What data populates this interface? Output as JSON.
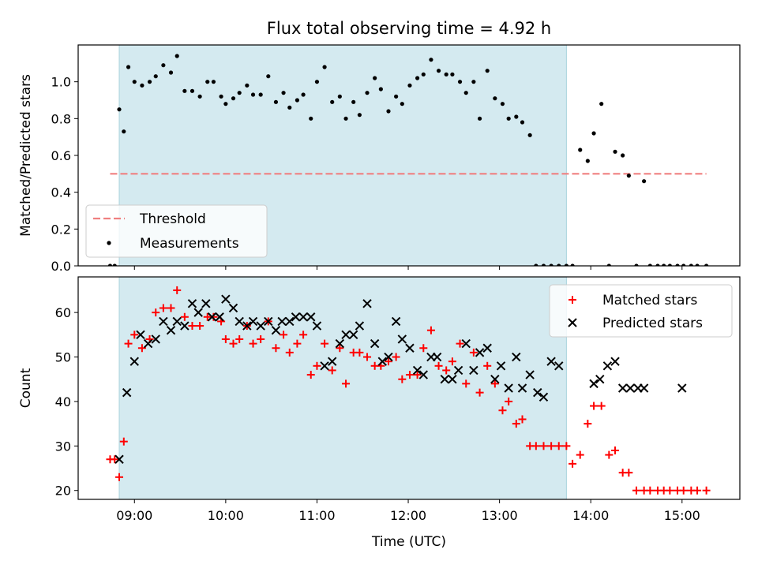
{
  "title": "Flux total observing time = 4.92 h",
  "xlabel": "Time (UTC)",
  "colors": {
    "shade": "#d4eaf0",
    "shade_edge": "#a9d3dc",
    "threshold": "#f08080",
    "matched": "#ff0000",
    "predicted": "#000000",
    "measurements": "#000000"
  },
  "chart_data": [
    {
      "type": "scatter",
      "ylabel": "Matched/Predicted stars",
      "xlim": [
        "08:23",
        "15:38"
      ],
      "ylim": [
        0,
        1.2
      ],
      "xticks": [
        "09:00",
        "10:00",
        "11:00",
        "12:00",
        "13:00",
        "14:00",
        "15:00"
      ],
      "yticks": [
        "0.0",
        "0.2",
        "0.4",
        "0.6",
        "0.8",
        "1.0"
      ],
      "shaded_span": [
        "08:50",
        "13:44"
      ],
      "legend_position": "lower-left",
      "threshold": {
        "name": "Threshold",
        "y": 0.5,
        "x_range": [
          "08:44",
          "15:16"
        ]
      },
      "series": [
        {
          "name": "Measurements",
          "x": [
            "08:44",
            "08:47",
            "08:50",
            "08:53",
            "08:56",
            "09:00",
            "09:05",
            "09:10",
            "09:14",
            "09:19",
            "09:24",
            "09:28",
            "09:33",
            "09:38",
            "09:43",
            "09:48",
            "09:52",
            "09:57",
            "10:00",
            "10:05",
            "10:09",
            "10:14",
            "10:18",
            "10:23",
            "10:28",
            "10:33",
            "10:38",
            "10:42",
            "10:47",
            "10:51",
            "10:56",
            "11:00",
            "11:05",
            "11:10",
            "11:15",
            "11:19",
            "11:24",
            "11:28",
            "11:33",
            "11:38",
            "11:42",
            "11:47",
            "11:52",
            "11:56",
            "12:01",
            "12:06",
            "12:10",
            "12:15",
            "12:20",
            "12:25",
            "12:29",
            "12:34",
            "12:38",
            "12:43",
            "12:47",
            "12:52",
            "12:57",
            "13:02",
            "13:06",
            "13:11",
            "13:15",
            "13:20",
            "13:24",
            "13:29",
            "13:34",
            "13:39",
            "13:44",
            "13:48",
            "13:53",
            "13:58",
            "14:02",
            "14:07",
            "14:12",
            "14:16",
            "14:21",
            "14:25",
            "14:30",
            "14:35",
            "14:39",
            "14:44",
            "14:48",
            "14:52",
            "14:57",
            "15:01",
            "15:06",
            "15:10",
            "15:16"
          ],
          "y": [
            0.0,
            0.0,
            0.85,
            0.73,
            1.08,
            1.0,
            0.98,
            1.0,
            1.03,
            1.09,
            1.05,
            1.14,
            0.95,
            0.95,
            0.92,
            1.0,
            1.0,
            0.92,
            0.88,
            0.91,
            0.94,
            0.98,
            0.93,
            0.93,
            1.03,
            0.89,
            0.94,
            0.86,
            0.9,
            0.93,
            0.8,
            1.0,
            1.08,
            0.89,
            0.92,
            0.8,
            0.89,
            0.82,
            0.94,
            1.02,
            0.96,
            0.84,
            0.92,
            0.88,
            0.98,
            1.02,
            1.04,
            1.12,
            1.06,
            1.04,
            1.04,
            1.0,
            0.94,
            1.0,
            0.8,
            1.06,
            0.91,
            0.88,
            0.8,
            0.81,
            0.78,
            0.71,
            0.0,
            0.0,
            0.0,
            0.0,
            0.0,
            0.0,
            0.63,
            0.57,
            0.72,
            0.88,
            0.0,
            0.62,
            0.6,
            0.49,
            0.0,
            0.46,
            0.0,
            0.0,
            0.0,
            0.0,
            0.0,
            0.0,
            0.0,
            0.0,
            0.0
          ]
        }
      ]
    },
    {
      "type": "scatter",
      "ylabel": "Count",
      "xlim": [
        "08:23",
        "15:38"
      ],
      "ylim": [
        18,
        68
      ],
      "xticks": [
        "09:00",
        "10:00",
        "11:00",
        "12:00",
        "13:00",
        "14:00",
        "15:00"
      ],
      "yticks": [
        "20",
        "30",
        "40",
        "50",
        "60"
      ],
      "shaded_span": [
        "08:50",
        "13:44"
      ],
      "legend_position": "top-right",
      "series": [
        {
          "name": "Matched stars",
          "marker": "plus",
          "x": [
            "08:44",
            "08:47",
            "08:50",
            "08:53",
            "08:56",
            "09:00",
            "09:05",
            "09:10",
            "09:14",
            "09:19",
            "09:24",
            "09:28",
            "09:33",
            "09:38",
            "09:43",
            "09:48",
            "09:52",
            "09:57",
            "10:00",
            "10:05",
            "10:09",
            "10:14",
            "10:18",
            "10:23",
            "10:28",
            "10:33",
            "10:38",
            "10:42",
            "10:47",
            "10:51",
            "10:56",
            "11:00",
            "11:05",
            "11:10",
            "11:15",
            "11:19",
            "11:24",
            "11:28",
            "11:33",
            "11:38",
            "11:42",
            "11:47",
            "11:52",
            "11:56",
            "12:01",
            "12:06",
            "12:10",
            "12:15",
            "12:20",
            "12:25",
            "12:29",
            "12:34",
            "12:38",
            "12:43",
            "12:47",
            "12:52",
            "12:57",
            "13:02",
            "13:06",
            "13:11",
            "13:15",
            "13:20",
            "13:24",
            "13:29",
            "13:34",
            "13:39",
            "13:44",
            "13:48",
            "13:53",
            "13:58",
            "14:02",
            "14:07",
            "14:12",
            "14:16",
            "14:21",
            "14:25",
            "14:30",
            "14:35",
            "14:39",
            "14:44",
            "14:48",
            "14:52",
            "14:57",
            "15:01",
            "15:06",
            "15:10",
            "15:16"
          ],
          "y": [
            27,
            27,
            23,
            31,
            53,
            55,
            52,
            54,
            60,
            61,
            61,
            65,
            59,
            57,
            57,
            59,
            59,
            58,
            54,
            53,
            54,
            57,
            53,
            54,
            58,
            52,
            55,
            51,
            53,
            55,
            46,
            48,
            53,
            47,
            52,
            44,
            51,
            51,
            50,
            48,
            48,
            49,
            50,
            45,
            46,
            46,
            52,
            56,
            48,
            47,
            49,
            53,
            44,
            51,
            42,
            48,
            44,
            38,
            40,
            35,
            36,
            30,
            30,
            30,
            30,
            30,
            30,
            26,
            28,
            35,
            39,
            39,
            28,
            29,
            24,
            24,
            20,
            20,
            20,
            20,
            20,
            20,
            20,
            20,
            20,
            20,
            20
          ]
        },
        {
          "name": "Predicted stars",
          "marker": "x",
          "x": [
            "08:50",
            "08:55",
            "09:00",
            "09:04",
            "09:09",
            "09:14",
            "09:19",
            "09:24",
            "09:28",
            "09:33",
            "09:38",
            "09:42",
            "09:47",
            "09:51",
            "09:56",
            "10:00",
            "10:05",
            "10:09",
            "10:14",
            "10:18",
            "10:23",
            "10:28",
            "10:33",
            "10:37",
            "10:42",
            "10:46",
            "10:51",
            "10:56",
            "11:00",
            "11:05",
            "11:10",
            "11:15",
            "11:19",
            "11:24",
            "11:28",
            "11:33",
            "11:38",
            "11:43",
            "11:47",
            "11:52",
            "11:56",
            "12:01",
            "12:06",
            "12:10",
            "12:15",
            "12:19",
            "12:24",
            "12:29",
            "12:33",
            "12:38",
            "12:43",
            "12:47",
            "12:52",
            "12:57",
            "13:01",
            "13:06",
            "13:11",
            "13:15",
            "13:20",
            "13:25",
            "13:29",
            "13:34",
            "13:39",
            "14:02",
            "14:06",
            "14:11",
            "14:16",
            "14:21",
            "14:26",
            "14:31",
            "14:35",
            "15:00"
          ],
          "y": [
            27,
            42,
            49,
            55,
            53,
            54,
            58,
            56,
            58,
            57,
            62,
            60,
            62,
            59,
            59,
            63,
            61,
            58,
            57,
            58,
            57,
            58,
            56,
            58,
            58,
            59,
            59,
            59,
            57,
            48,
            49,
            53,
            55,
            55,
            57,
            62,
            53,
            49,
            50,
            58,
            54,
            52,
            47,
            46,
            50,
            50,
            45,
            45,
            47,
            53,
            47,
            51,
            52,
            45,
            48,
            43,
            50,
            43,
            46,
            42,
            41,
            49,
            48,
            44,
            45,
            48,
            49,
            43,
            43,
            43,
            43,
            43
          ]
        }
      ]
    }
  ]
}
